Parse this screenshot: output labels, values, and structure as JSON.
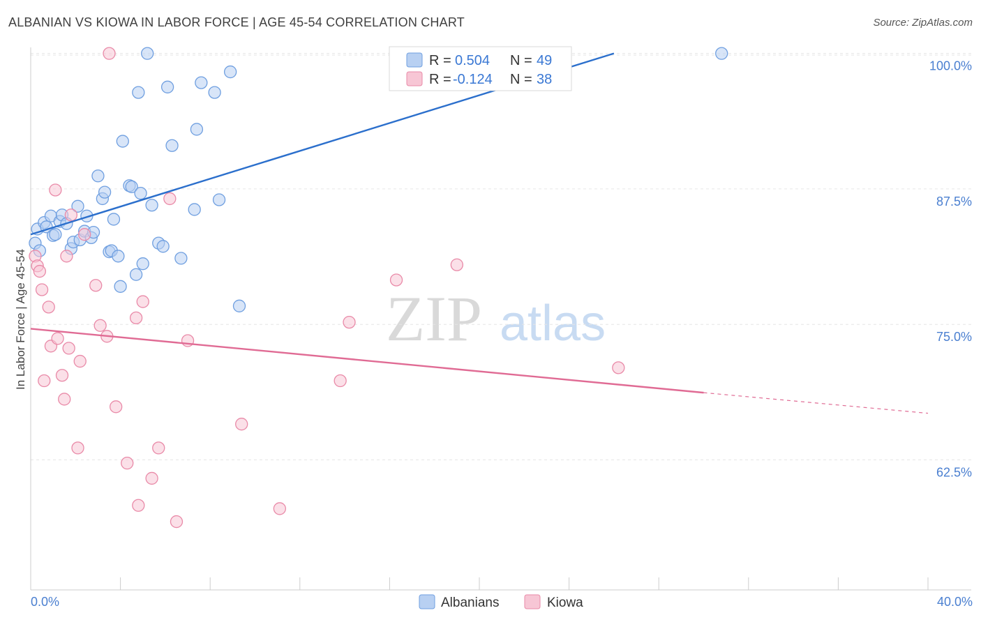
{
  "chart_data": {
    "type": "scatter",
    "title": "ALBANIAN VS KIOWA IN LABOR FORCE | AGE 45-54 CORRELATION CHART",
    "source": "Source: ZipAtlas.com",
    "xlabel": "",
    "ylabel": "In Labor Force | Age 45-54",
    "xlim": [
      0,
      40
    ],
    "ylim": [
      50.5,
      101.2
    ],
    "x_tick_labels": [
      "0.0%",
      "40.0%"
    ],
    "y_ticks": [
      62.5,
      75.0,
      87.5,
      100.0
    ],
    "y_tick_labels": [
      "62.5%",
      "75.0%",
      "87.5%",
      "100.0%"
    ],
    "watermark": {
      "zip": "ZIP",
      "atlas": "atlas"
    },
    "legend": {
      "r_label": "R =",
      "n_label": "N =",
      "entries": [
        {
          "r": "0.504",
          "n": "49"
        },
        {
          "r": "-0.124",
          "n": "38"
        }
      ]
    },
    "series": [
      {
        "name": "Albanians",
        "color": "#6f9fe0",
        "fill": "#b8d0f2",
        "line_color": "#2b6fcc",
        "trend": {
          "x1": 0.0,
          "y1": 83.3,
          "x2": 26.0,
          "y2": 100.0
        },
        "points": [
          [
            0.2,
            82.5
          ],
          [
            0.3,
            83.8
          ],
          [
            0.4,
            81.8
          ],
          [
            0.6,
            84.4
          ],
          [
            0.7,
            84.0
          ],
          [
            0.9,
            85.0
          ],
          [
            1.0,
            83.2
          ],
          [
            1.1,
            83.3
          ],
          [
            1.3,
            84.5
          ],
          [
            1.4,
            85.1
          ],
          [
            1.6,
            84.3
          ],
          [
            1.8,
            82.0
          ],
          [
            1.9,
            82.6
          ],
          [
            2.1,
            85.9
          ],
          [
            2.2,
            82.8
          ],
          [
            2.4,
            83.6
          ],
          [
            2.5,
            85.0
          ],
          [
            2.7,
            83.0
          ],
          [
            2.8,
            83.5
          ],
          [
            3.0,
            88.7
          ],
          [
            3.2,
            86.6
          ],
          [
            3.3,
            87.2
          ],
          [
            3.5,
            81.7
          ],
          [
            3.6,
            81.8
          ],
          [
            3.7,
            84.7
          ],
          [
            3.9,
            81.3
          ],
          [
            4.0,
            78.5
          ],
          [
            4.1,
            91.9
          ],
          [
            4.4,
            87.8
          ],
          [
            4.5,
            87.7
          ],
          [
            4.7,
            79.6
          ],
          [
            4.8,
            96.4
          ],
          [
            4.9,
            87.1
          ],
          [
            5.0,
            80.6
          ],
          [
            5.2,
            100.0
          ],
          [
            5.4,
            86.0
          ],
          [
            5.7,
            82.5
          ],
          [
            5.9,
            82.2
          ],
          [
            6.1,
            96.9
          ],
          [
            6.3,
            91.5
          ],
          [
            6.7,
            81.1
          ],
          [
            7.3,
            85.6
          ],
          [
            7.4,
            93.0
          ],
          [
            7.6,
            97.3
          ],
          [
            8.2,
            96.4
          ],
          [
            8.4,
            86.5
          ],
          [
            8.9,
            98.3
          ],
          [
            9.3,
            76.7
          ],
          [
            30.8,
            100.0
          ]
        ]
      },
      {
        "name": "Kiowa",
        "color": "#e98aa8",
        "fill": "#f7c6d5",
        "line_color": "#e06b94",
        "trend": {
          "x1": 0.0,
          "y1": 74.6,
          "x2": 30.0,
          "y2": 68.7
        },
        "trend_ext": {
          "x1": 30.0,
          "y1": 68.7,
          "x2": 40.0,
          "y2": 66.8
        },
        "points": [
          [
            0.2,
            81.3
          ],
          [
            0.3,
            80.4
          ],
          [
            0.4,
            79.9
          ],
          [
            0.5,
            78.2
          ],
          [
            0.6,
            69.8
          ],
          [
            0.8,
            76.6
          ],
          [
            0.9,
            73.0
          ],
          [
            1.1,
            87.4
          ],
          [
            1.2,
            73.7
          ],
          [
            1.4,
            70.3
          ],
          [
            1.5,
            68.1
          ],
          [
            1.6,
            81.3
          ],
          [
            1.7,
            72.8
          ],
          [
            1.8,
            85.1
          ],
          [
            2.1,
            63.6
          ],
          [
            2.2,
            71.6
          ],
          [
            2.4,
            83.3
          ],
          [
            2.9,
            78.6
          ],
          [
            3.1,
            74.9
          ],
          [
            3.4,
            73.9
          ],
          [
            3.5,
            100.0
          ],
          [
            3.8,
            67.4
          ],
          [
            4.3,
            62.2
          ],
          [
            4.7,
            75.6
          ],
          [
            4.8,
            58.3
          ],
          [
            5.0,
            77.1
          ],
          [
            5.4,
            60.8
          ],
          [
            5.7,
            63.6
          ],
          [
            6.2,
            86.6
          ],
          [
            6.5,
            56.8
          ],
          [
            7.0,
            73.5
          ],
          [
            9.4,
            65.8
          ],
          [
            11.1,
            58.0
          ],
          [
            13.8,
            69.8
          ],
          [
            14.2,
            75.2
          ],
          [
            16.3,
            79.1
          ],
          [
            19.0,
            80.5
          ],
          [
            26.2,
            71.0
          ]
        ]
      }
    ]
  }
}
